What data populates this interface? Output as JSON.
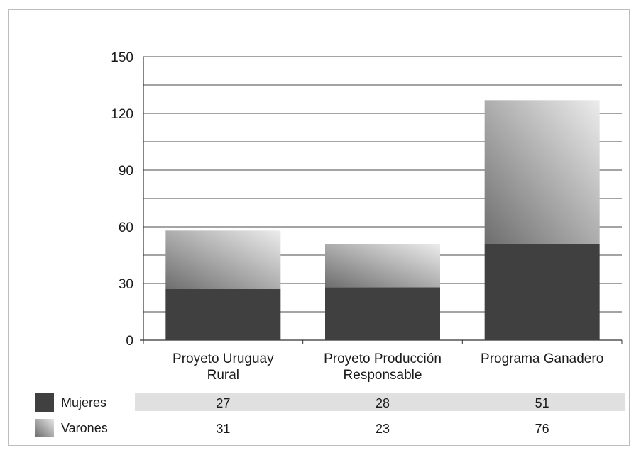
{
  "chart_data": {
    "type": "bar",
    "stacked": true,
    "categories": [
      [
        "Proyeto Uruguay",
        "Rural"
      ],
      [
        "Proyeto Producción",
        "Responsable"
      ],
      [
        "Programa Ganadero"
      ]
    ],
    "series": [
      {
        "name": "Mujeres",
        "values": [
          27,
          28,
          51
        ],
        "color": "#404040"
      },
      {
        "name": "Varones",
        "values": [
          31,
          23,
          76
        ],
        "color": "gradient-gray"
      }
    ],
    "stack_order_bottom_to_top": [
      "Mujeres",
      "Varones"
    ],
    "ylim": [
      0,
      150
    ],
    "yticks": [
      0,
      30,
      60,
      90,
      120,
      150
    ],
    "grid": true,
    "data_table": true
  }
}
